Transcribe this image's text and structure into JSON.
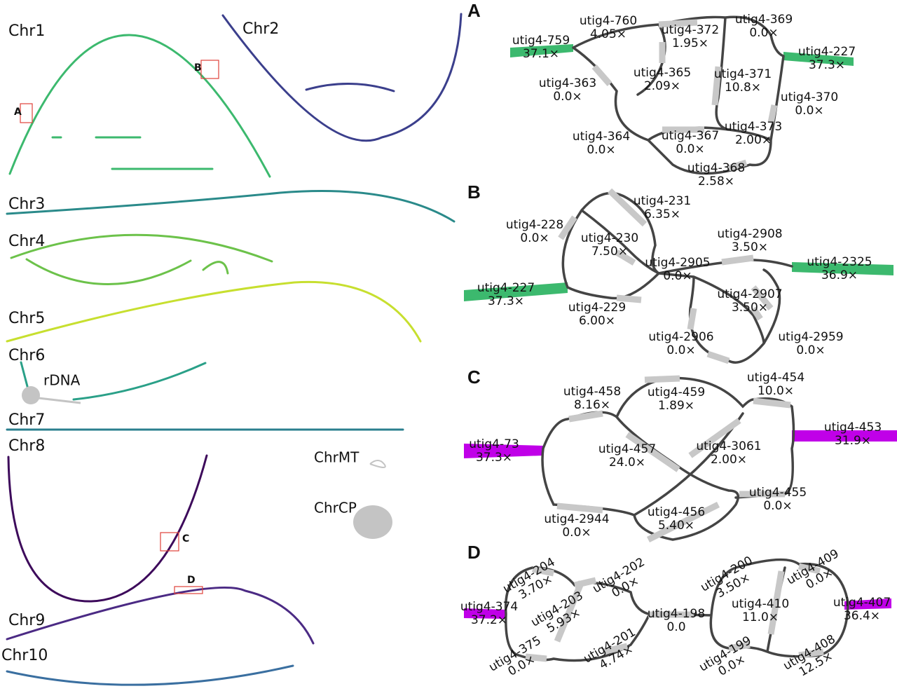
{
  "left": {
    "chromosomes": [
      "Chr1",
      "Chr2",
      "Chr3",
      "Chr4",
      "Chr5",
      "Chr6",
      "Chr7",
      "Chr8",
      "Chr9",
      "Chr10"
    ],
    "rdna": "rDNA",
    "mito": "ChrMT",
    "plastid": "ChrCP",
    "insets": [
      "A",
      "B",
      "C",
      "D"
    ]
  },
  "panels": [
    {
      "label": "A",
      "nodes": [
        {
          "name": "utig4-760",
          "cov": "4.05×"
        },
        {
          "name": "utig4-372",
          "cov": "1.95×"
        },
        {
          "name": "utig4-369",
          "cov": "0.0×"
        },
        {
          "name": "utig4-759",
          "cov": "37.1×"
        },
        {
          "name": "utig4-227",
          "cov": "37.3×"
        },
        {
          "name": "utig4-365",
          "cov": "2.09×"
        },
        {
          "name": "utig4-371",
          "cov": "10.8×"
        },
        {
          "name": "utig4-363",
          "cov": "0.0×"
        },
        {
          "name": "utig4-370",
          "cov": "0.0×"
        },
        {
          "name": "utig4-364",
          "cov": "0.0×"
        },
        {
          "name": "utig4-367",
          "cov": "0.0×"
        },
        {
          "name": "utig4-373",
          "cov": "2.00×"
        },
        {
          "name": "utig4-368",
          "cov": "2.58×"
        }
      ]
    },
    {
      "label": "B",
      "nodes": [
        {
          "name": "utig4-231",
          "cov": "6.35×"
        },
        {
          "name": "utig4-228",
          "cov": "0.0×"
        },
        {
          "name": "utig4-230",
          "cov": "7.50×"
        },
        {
          "name": "utig4-2908",
          "cov": "3.50×"
        },
        {
          "name": "utig4-2905",
          "cov": "0.0×"
        },
        {
          "name": "utig4-2325",
          "cov": "36.9×"
        },
        {
          "name": "utig4-227",
          "cov": "37.3×"
        },
        {
          "name": "utig4-2907",
          "cov": "3.50×"
        },
        {
          "name": "utig4-229",
          "cov": "6.00×"
        },
        {
          "name": "utig4-2906",
          "cov": "0.0×"
        },
        {
          "name": "utig4-2959",
          "cov": "0.0×"
        }
      ]
    },
    {
      "label": "C",
      "nodes": [
        {
          "name": "utig4-458",
          "cov": "8.16×"
        },
        {
          "name": "utig4-459",
          "cov": "1.89×"
        },
        {
          "name": "utig4-454",
          "cov": "10.0×"
        },
        {
          "name": "utig4-453",
          "cov": "31.9×"
        },
        {
          "name": "utig4-73",
          "cov": "37.3×"
        },
        {
          "name": "utig4-457",
          "cov": "24.0×"
        },
        {
          "name": "utig4-3061",
          "cov": "2.00×"
        },
        {
          "name": "utig4-455",
          "cov": "0.0×"
        },
        {
          "name": "utig4-2944",
          "cov": "0.0×"
        },
        {
          "name": "utig4-456",
          "cov": "5.40×"
        }
      ]
    },
    {
      "label": "D",
      "nodes": [
        {
          "name": "utig4-204",
          "cov": "3.70×"
        },
        {
          "name": "utig4-202",
          "cov": "0.0×"
        },
        {
          "name": "utig4-200",
          "cov": "3.50×"
        },
        {
          "name": "utig4-409",
          "cov": "0.0×"
        },
        {
          "name": "utig4-374",
          "cov": "37.2×"
        },
        {
          "name": "utig4-203",
          "cov": "5.93×"
        },
        {
          "name": "utig4-410",
          "cov": "11.0×"
        },
        {
          "name": "utig4-407",
          "cov": "36.4×"
        },
        {
          "name": "utig4-198",
          "cov": "0.0"
        },
        {
          "name": "utig4-375",
          "cov": "0.0×"
        },
        {
          "name": "utig4-201",
          "cov": "4.74×"
        },
        {
          "name": "utig4-199",
          "cov": "0.0×"
        },
        {
          "name": "utig4-408",
          "cov": "12.5×"
        }
      ]
    }
  ]
}
